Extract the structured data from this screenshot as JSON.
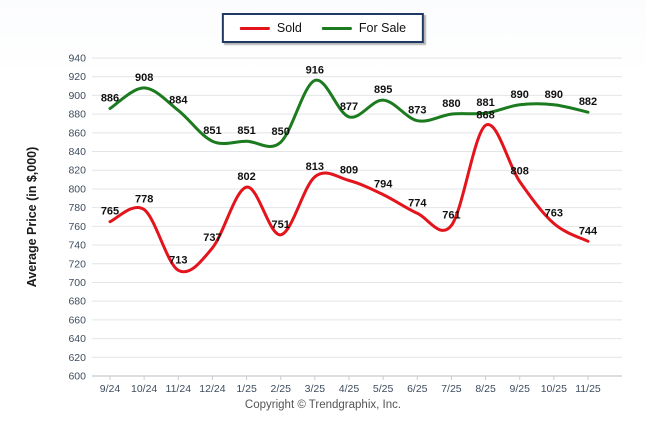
{
  "chart_data": {
    "type": "line",
    "title": "",
    "xlabel": "",
    "ylabel": "Average Price (in $,000)",
    "ylim": [
      600,
      940
    ],
    "ytick_step": 20,
    "grid": true,
    "legend_position": "top-center",
    "categories": [
      "9/24",
      "10/24",
      "11/24",
      "12/24",
      "1/25",
      "2/25",
      "3/25",
      "4/25",
      "5/25",
      "6/25",
      "7/25",
      "8/25",
      "9/25",
      "10/25",
      "11/25"
    ],
    "series": [
      {
        "name": "For Sale",
        "color": "#1c7a1f",
        "values": [
          886,
          908,
          884,
          851,
          851,
          850,
          916,
          877,
          895,
          873,
          880,
          881,
          890,
          890,
          882
        ]
      },
      {
        "name": "Sold",
        "color": "#e4141c",
        "values": [
          765,
          778,
          713,
          737,
          802,
          751,
          813,
          809,
          794,
          774,
          761,
          868,
          808,
          763,
          744
        ]
      }
    ]
  },
  "footer": {
    "copyright": "Copyright © Trendgraphix, Inc."
  },
  "colors": {
    "grid_line": "#e2e4e8",
    "axis_line": "#b9bec6",
    "tick_mark": "#c9cdd2",
    "tick_label": "#3e4c5e",
    "data_label": "#111111",
    "legend_border": "#1e3a63"
  }
}
